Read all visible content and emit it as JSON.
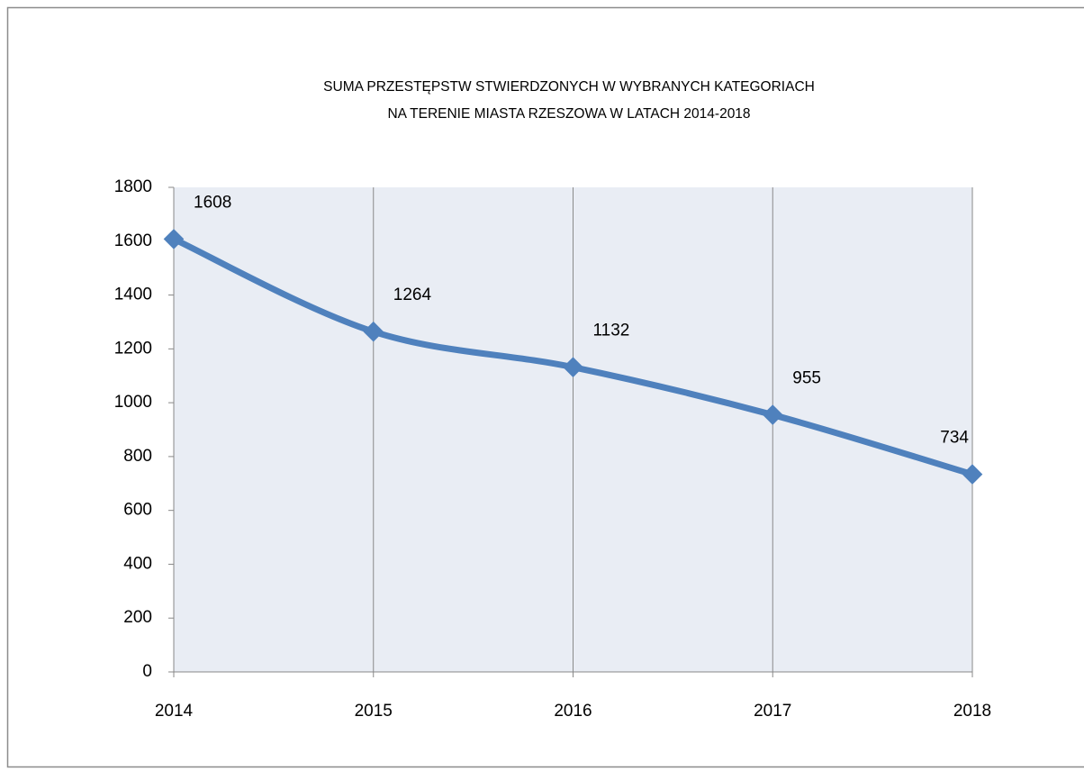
{
  "chart_data": {
    "type": "line",
    "title": [
      "SUMA PRZESTĘPSTW STWIERDZONYCH W WYBRANYCH  KATEGORIACH",
      "NA TERENIE MIASTA RZESZOWA W  LATACH 2014-2018"
    ],
    "categories": [
      "2014",
      "2015",
      "2016",
      "2017",
      "2018"
    ],
    "values": [
      1608,
      1264,
      1132,
      955,
      734
    ],
    "color": "#4f81bd",
    "ylim": [
      0,
      1800
    ],
    "yticks": [
      0,
      200,
      400,
      600,
      800,
      1000,
      1200,
      1400,
      1600,
      1800
    ],
    "grid": true
  }
}
